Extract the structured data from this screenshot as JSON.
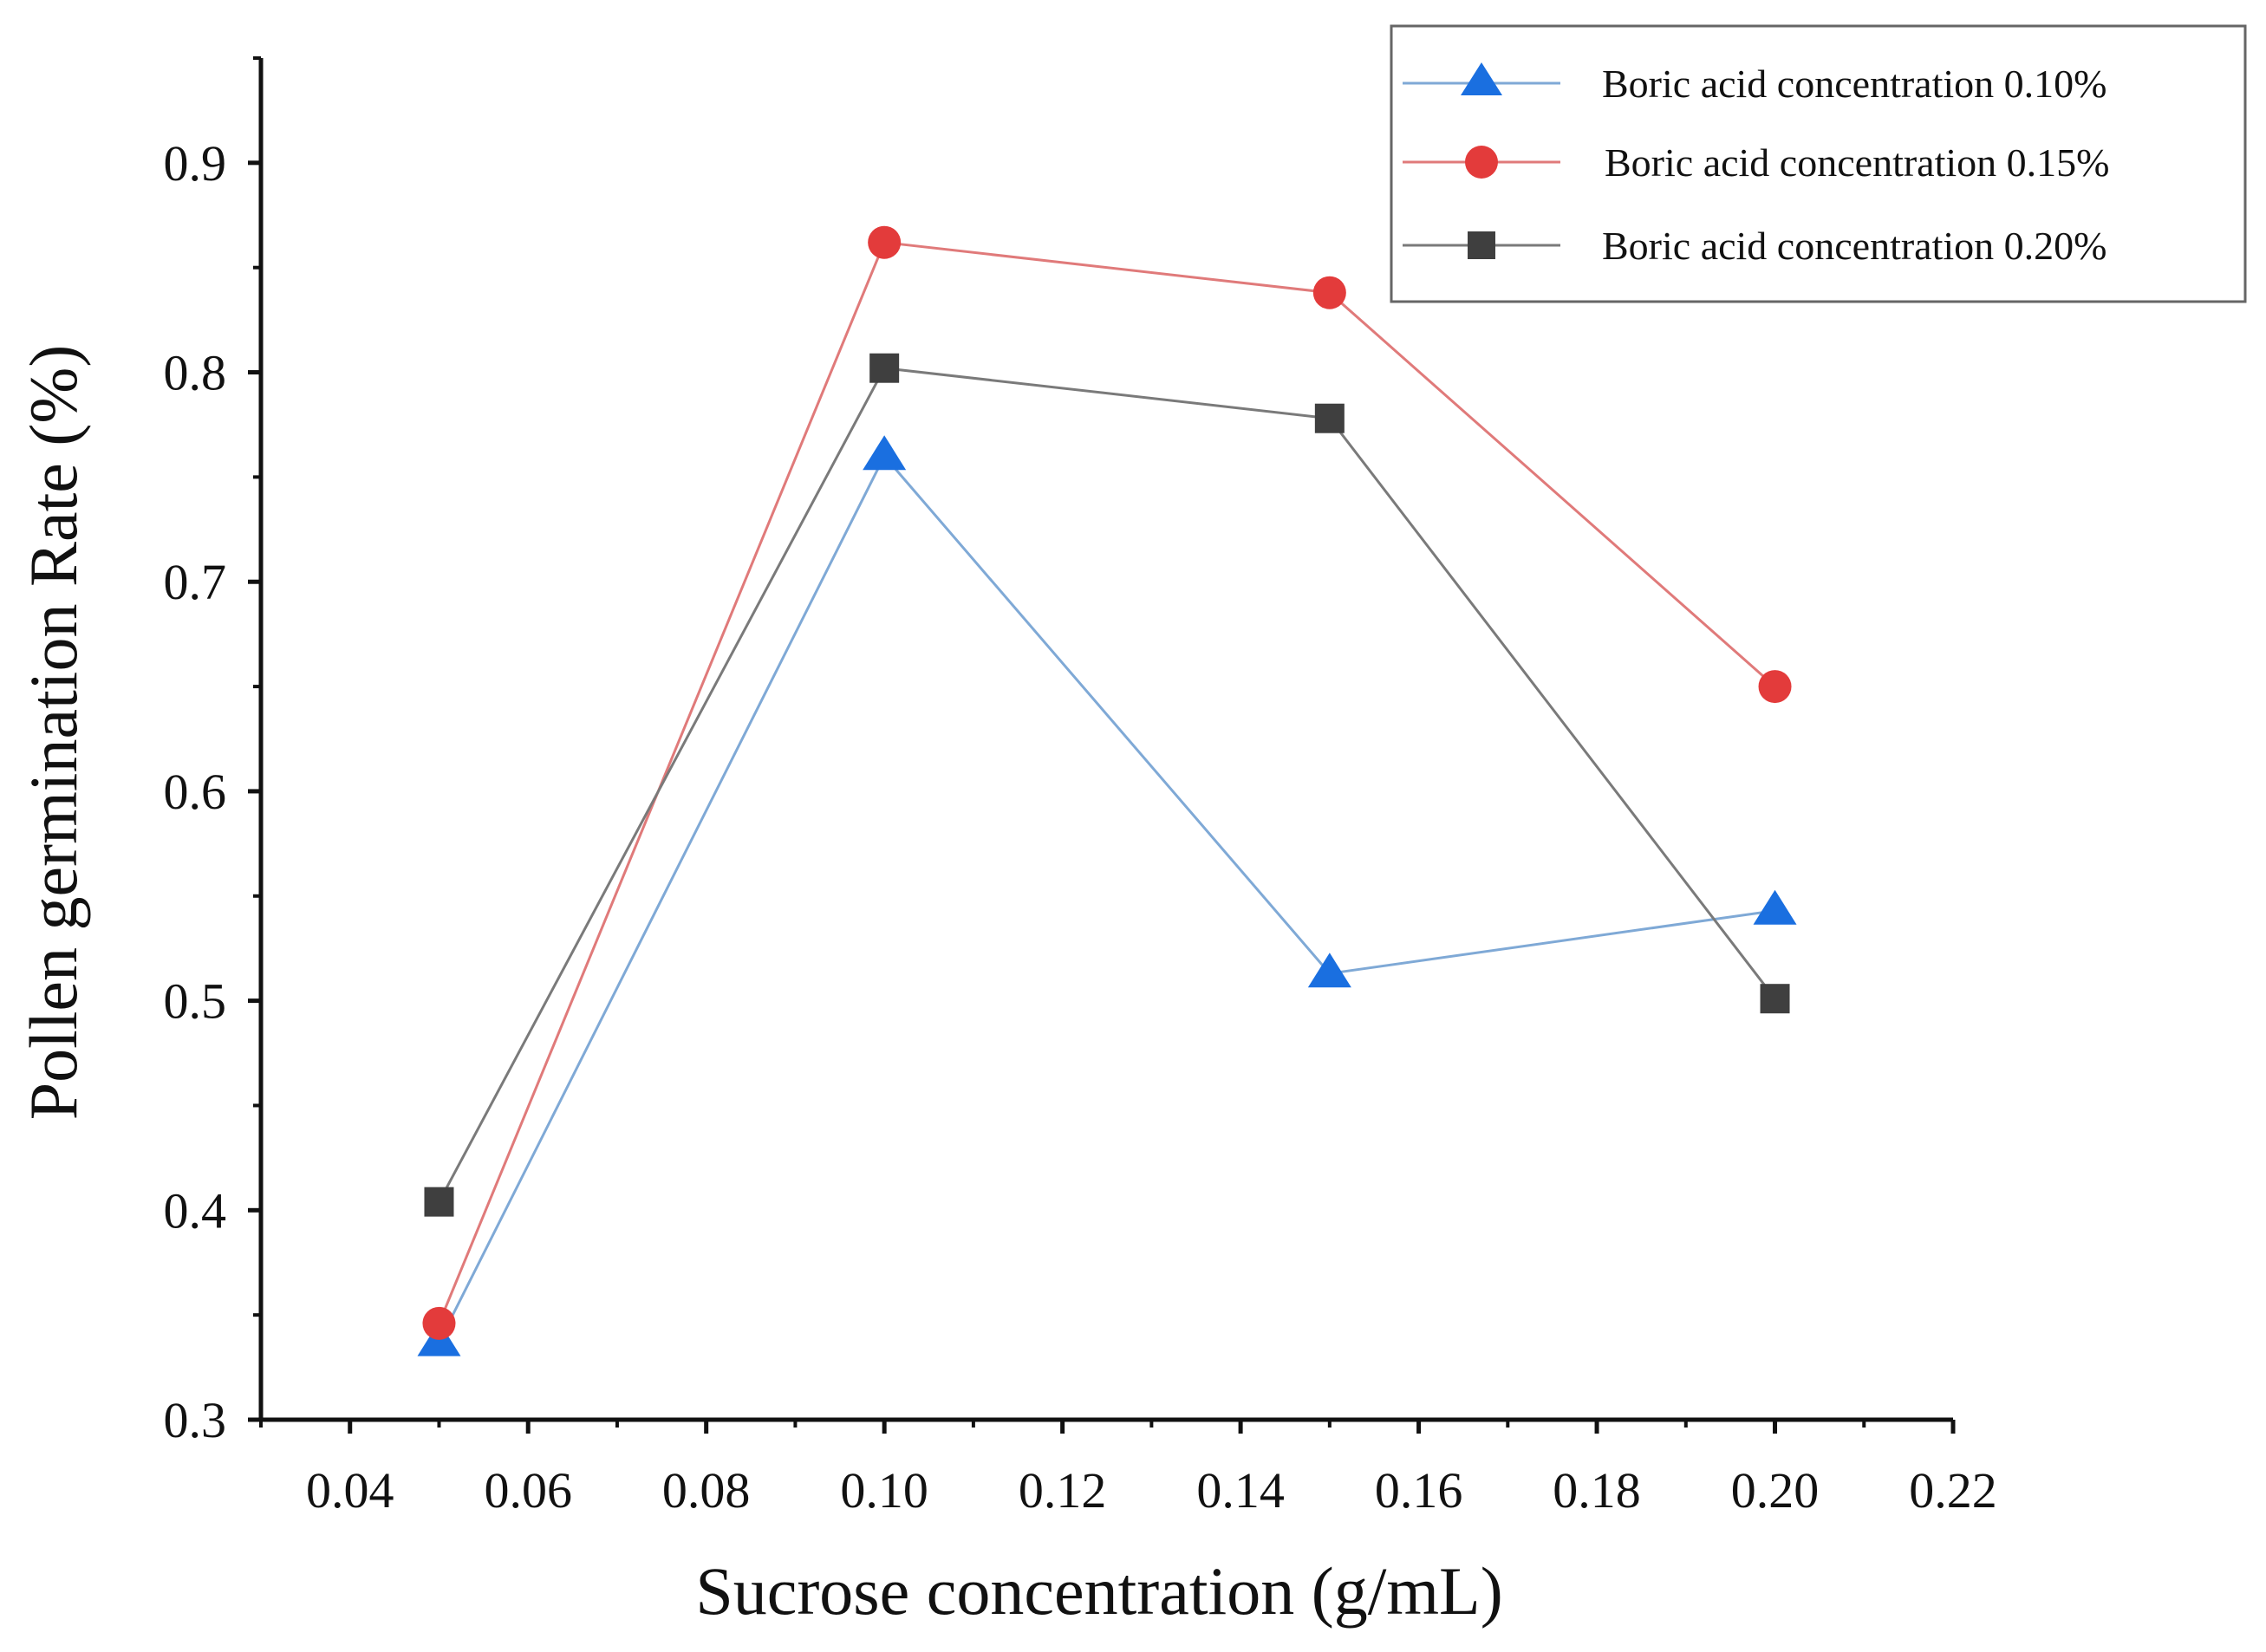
{
  "chart_data": {
    "type": "line",
    "title": "",
    "xlabel": "Sucrose concentration (g/mL)",
    "ylabel": "Pollen germination Rate (%)",
    "xlim": [
      0.03,
      0.22
    ],
    "ylim": [
      0.3,
      0.95
    ],
    "x_ticks": [
      0.04,
      0.06,
      0.08,
      0.1,
      0.12,
      0.14,
      0.16,
      0.18,
      0.2,
      0.22
    ],
    "x_tick_labels": [
      "0.04",
      "0.06",
      "0.08",
      "0.10",
      "0.12",
      "0.14",
      "0.16",
      "0.18",
      "0.20",
      "0.22"
    ],
    "y_ticks": [
      0.3,
      0.4,
      0.5,
      0.6,
      0.7,
      0.8,
      0.9
    ],
    "y_tick_labels": [
      "0.3",
      "0.4",
      "0.5",
      "0.6",
      "0.7",
      "0.8",
      "0.9"
    ],
    "grid": false,
    "legend_position": "top-right",
    "x": [
      0.05,
      0.1,
      0.15,
      0.2
    ],
    "series": [
      {
        "name": "Boric acid concentration 0.10%",
        "values": [
          0.337,
          0.76,
          0.513,
          0.543
        ],
        "marker": "triangle",
        "marker_color": "#1a6fe0",
        "line_color": "#7fa9d6"
      },
      {
        "name": "Boric acid concentration 0.15%",
        "values": [
          0.346,
          0.862,
          0.838,
          0.65
        ],
        "marker": "circle",
        "marker_color": "#e33b3b",
        "line_color": "#e07a7a"
      },
      {
        "name": "Boric acid concentration 0.20%",
        "values": [
          0.404,
          0.802,
          0.778,
          0.501
        ],
        "marker": "square",
        "marker_color": "#3f3f3f",
        "line_color": "#7a7a7a"
      }
    ]
  }
}
